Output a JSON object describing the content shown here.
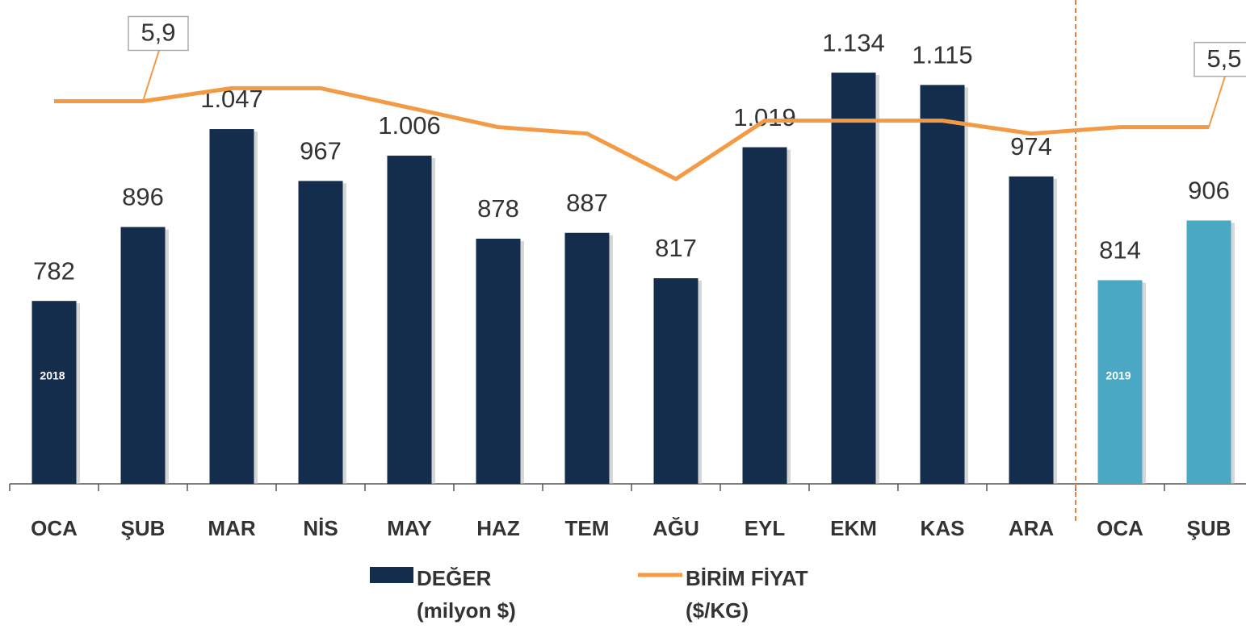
{
  "chart_data": {
    "type": "bar",
    "categories": [
      "OCA",
      "ŞUB",
      "MAR",
      "NİS",
      "MAY",
      "HAZ",
      "TEM",
      "AĞU",
      "EYL",
      "EKM",
      "KAS",
      "ARA",
      "OCA",
      "ŞUB"
    ],
    "ylim": [
      500,
      1200
    ],
    "y2lim": [
      0,
      7
    ],
    "series": [
      {
        "name": "DEĞER (milyon $)",
        "type": "bar",
        "color": "#142d4c",
        "colors": [
          "#142d4c",
          "#142d4c",
          "#142d4c",
          "#142d4c",
          "#142d4c",
          "#142d4c",
          "#142d4c",
          "#142d4c",
          "#142d4c",
          "#142d4c",
          "#142d4c",
          "#142d4c",
          "#4aa8c4",
          "#4aa8c4"
        ],
        "values": [
          782,
          896,
          1047,
          967,
          1006,
          878,
          887,
          817,
          1019,
          1134,
          1115,
          974,
          814,
          906
        ],
        "value_labels": [
          "782",
          "896",
          "1.047",
          "967",
          "1.006",
          "878",
          "887",
          "817",
          "1.019",
          "1.134",
          "1.115",
          "974",
          "814",
          "906"
        ]
      },
      {
        "name": "BİRİM FİYAT ($/KG)",
        "type": "line",
        "axis": "y2",
        "color": "#f39a45",
        "values": [
          5.9,
          5.9,
          6.1,
          6.1,
          5.8,
          5.5,
          5.4,
          4.7,
          5.6,
          5.6,
          5.6,
          5.4,
          5.5,
          5.5
        ],
        "value_labels": [
          null,
          "5,9",
          null,
          null,
          null,
          null,
          null,
          null,
          null,
          null,
          null,
          null,
          null,
          "5,5"
        ]
      }
    ],
    "annotations": [
      {
        "text": "2018",
        "index": 0
      },
      {
        "text": "2019",
        "index": 12
      }
    ],
    "divider_after_index": 11,
    "grid": false
  }
}
